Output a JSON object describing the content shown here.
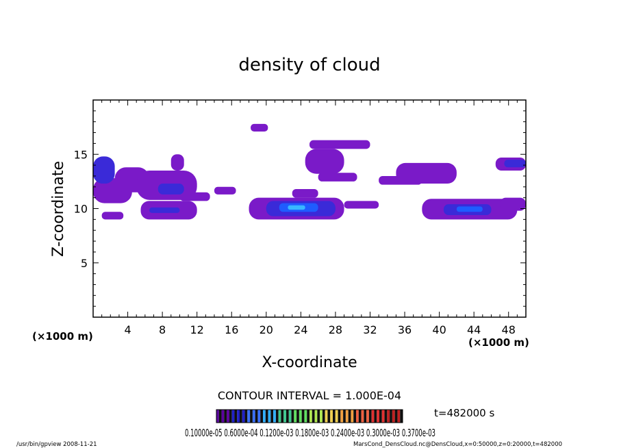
{
  "chart_data": {
    "type": "heatmap",
    "title": "density of cloud",
    "xlabel": "X-coordinate",
    "ylabel": "Z-coordinate",
    "x_unit": "(×1000 m)",
    "y_unit": "(×1000 m)",
    "xlim": [
      0,
      50
    ],
    "ylim": [
      0,
      20
    ],
    "x_ticks": [
      4,
      8,
      12,
      16,
      20,
      24,
      28,
      32,
      36,
      40,
      44,
      48
    ],
    "x_tick_labels": [
      "4",
      "8",
      "12",
      "16",
      "20",
      "24",
      "28",
      "32",
      "36",
      "40",
      "44",
      "48"
    ],
    "y_ticks": [
      5,
      10,
      15
    ],
    "y_tick_labels": [
      "5",
      "10",
      "15"
    ],
    "contour_interval_label": "CONTOUR INTERVAL = 1.000E-04",
    "time_label": "t=482000 s",
    "colorbar_labels_text": "0.10000e-05 0.6000e-04 0.1200e-03 0.1800e-03 0.2400e-03 0.3000e-03 0.3700e-03",
    "colorbar_colors": [
      "#5a00a0",
      "#2020c8",
      "#3a70ff",
      "#30b0ff",
      "#40c890",
      "#60e060",
      "#b0e850",
      "#f0d050",
      "#f0a040",
      "#f06040",
      "#e03030",
      "#c02020"
    ],
    "color_levels": {
      "low": "#7a1ac8",
      "mid": "#3a2ad8",
      "high": "#1f5cff",
      "peak": "#38b8ff"
    },
    "cloud_regions": [
      {
        "x": [
          0,
          2.5
        ],
        "z": [
          12.3,
          14.8
        ],
        "level": "mid"
      },
      {
        "x": [
          0,
          4.5
        ],
        "z": [
          10.5,
          12.8
        ],
        "level": "low"
      },
      {
        "x": [
          2.5,
          6.5
        ],
        "z": [
          11.5,
          13.8
        ],
        "level": "low"
      },
      {
        "x": [
          5,
          12
        ],
        "z": [
          10.8,
          13.5
        ],
        "level": "low"
      },
      {
        "x": [
          7.5,
          10.5
        ],
        "z": [
          11.3,
          12.3
        ],
        "level": "mid"
      },
      {
        "x": [
          9,
          10.5
        ],
        "z": [
          13.5,
          15
        ],
        "level": "low"
      },
      {
        "x": [
          10,
          13.5
        ],
        "z": [
          10.7,
          11.5
        ],
        "level": "low"
      },
      {
        "x": [
          14,
          16.5
        ],
        "z": [
          11.3,
          12
        ],
        "level": "low"
      },
      {
        "x": [
          5.5,
          12
        ],
        "z": [
          9,
          10.7
        ],
        "level": "low"
      },
      {
        "x": [
          6.5,
          10
        ],
        "z": [
          9.6,
          10.1
        ],
        "level": "mid"
      },
      {
        "x": [
          1,
          3.5
        ],
        "z": [
          9,
          9.7
        ],
        "level": "low"
      },
      {
        "x": [
          18.2,
          20.2
        ],
        "z": [
          17.1,
          17.8
        ],
        "level": "low"
      },
      {
        "x": [
          18,
          29
        ],
        "z": [
          9,
          11
        ],
        "level": "low"
      },
      {
        "x": [
          20,
          28
        ],
        "z": [
          9.3,
          10.7
        ],
        "level": "mid"
      },
      {
        "x": [
          21.5,
          26
        ],
        "z": [
          9.7,
          10.5
        ],
        "level": "high"
      },
      {
        "x": [
          22.5,
          24.5
        ],
        "z": [
          9.9,
          10.3
        ],
        "level": "peak"
      },
      {
        "x": [
          23,
          26
        ],
        "z": [
          11,
          11.8
        ],
        "level": "low"
      },
      {
        "x": [
          29,
          33
        ],
        "z": [
          10,
          10.7
        ],
        "level": "low"
      },
      {
        "x": [
          25,
          32
        ],
        "z": [
          15.5,
          16.3
        ],
        "level": "low"
      },
      {
        "x": [
          24.5,
          29
        ],
        "z": [
          13.2,
          15.5
        ],
        "level": "low"
      },
      {
        "x": [
          26,
          30.5
        ],
        "z": [
          12.5,
          13.3
        ],
        "level": "low"
      },
      {
        "x": [
          33,
          38
        ],
        "z": [
          12.2,
          13
        ],
        "level": "low"
      },
      {
        "x": [
          35,
          42
        ],
        "z": [
          12.3,
          14.2
        ],
        "level": "low"
      },
      {
        "x": [
          38,
          49
        ],
        "z": [
          9,
          10.9
        ],
        "level": "low"
      },
      {
        "x": [
          40.5,
          46
        ],
        "z": [
          9.4,
          10.4
        ],
        "level": "mid"
      },
      {
        "x": [
          42,
          45
        ],
        "z": [
          9.7,
          10.2
        ],
        "level": "high"
      },
      {
        "x": [
          47,
          50
        ],
        "z": [
          9.8,
          11
        ],
        "level": "low"
      },
      {
        "x": [
          46.5,
          50
        ],
        "z": [
          13.5,
          14.7
        ],
        "level": "low"
      },
      {
        "x": [
          47.5,
          50
        ],
        "z": [
          13.8,
          14.5
        ],
        "level": "mid"
      }
    ]
  },
  "footer": {
    "program": "/usr/bin/gpview   2008-11-21",
    "source": "MarsCond_DensCloud.nc@DensCloud,x=0:50000,z=0:20000,t=482000"
  }
}
